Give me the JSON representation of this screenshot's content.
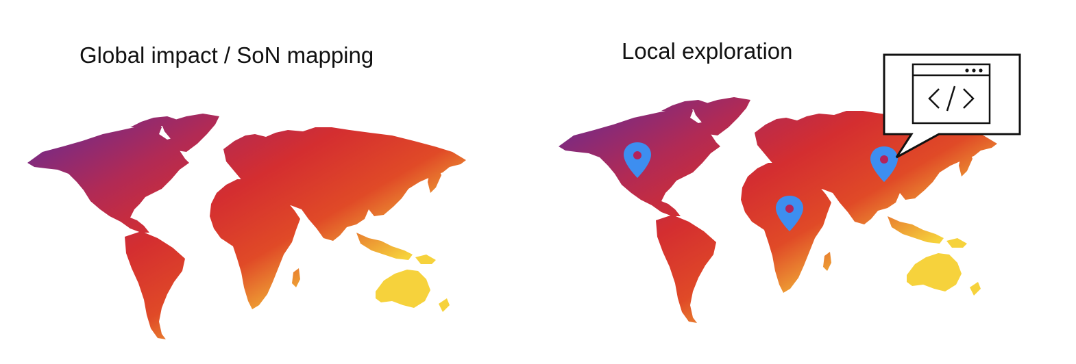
{
  "panels": [
    {
      "title": "Global impact / SoN mapping",
      "map": "world-map",
      "markers": []
    },
    {
      "title": "Local exploration",
      "map": "world-map",
      "markers": [
        "north-america-pin",
        "africa-pin",
        "asia-pin"
      ],
      "callout": {
        "icon": "code-window-icon",
        "glyph": "</>"
      }
    }
  ],
  "colors": {
    "gradient": [
      "#f6d23c",
      "#e04a27",
      "#d42e30",
      "#b12a55",
      "#7b2a82",
      "#2f2a7c"
    ],
    "pin": "#3d8ef0",
    "pin_dot": "#b4235a",
    "callout_stroke": "#111111"
  }
}
